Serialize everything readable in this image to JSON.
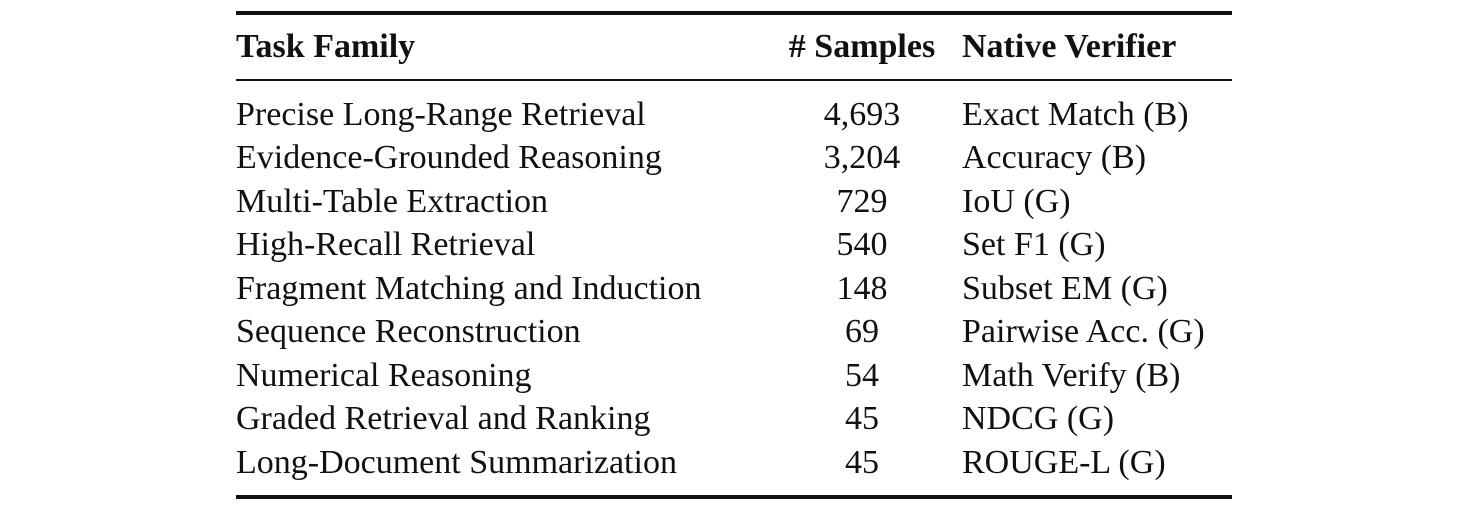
{
  "table": {
    "headers": {
      "task_family": "Task Family",
      "samples": "# Samples",
      "verifier": "Native Verifier"
    },
    "rows": [
      {
        "task": "Precise Long-Range Retrieval",
        "samples": "4,693",
        "verifier": "Exact Match (B)"
      },
      {
        "task": "Evidence-Grounded Reasoning",
        "samples": "3,204",
        "verifier": "Accuracy (B)"
      },
      {
        "task": "Multi-Table Extraction",
        "samples": "729",
        "verifier": "IoU (G)"
      },
      {
        "task": "High-Recall Retrieval",
        "samples": "540",
        "verifier": "Set F1 (G)"
      },
      {
        "task": "Fragment Matching and Induction",
        "samples": "148",
        "verifier": "Subset EM (G)"
      },
      {
        "task": "Sequence Reconstruction",
        "samples": "69",
        "verifier": "Pairwise Acc. (G)"
      },
      {
        "task": "Numerical Reasoning",
        "samples": "54",
        "verifier": "Math Verify (B)"
      },
      {
        "task": "Graded Retrieval and Ranking",
        "samples": "45",
        "verifier": "NDCG (G)"
      },
      {
        "task": "Long-Document Summarization",
        "samples": "45",
        "verifier": "ROUGE-L (G)"
      }
    ]
  }
}
